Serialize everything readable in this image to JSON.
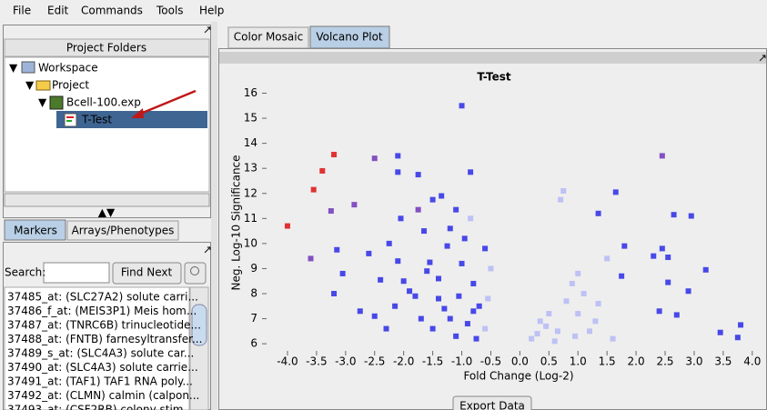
{
  "menu": [
    "File",
    "Edit",
    "Commands",
    "Tools",
    "Help"
  ],
  "left_panel": {
    "title": "Project Folders",
    "tree": [
      "Workspace",
      "Project",
      "Bcell-100.exp",
      "T-Test"
    ],
    "tabs": [
      "Markers",
      "Arrays/Phenotypes"
    ],
    "search_label": "Search:",
    "find_button": "Find Next",
    "markers": [
      "37485_at: (SLC27A2) solute carri...",
      "37486_f_at: (MEIS3P1) Meis hom...",
      "37487_at: (TNRC6B) trinucleotide...",
      "37488_at: (FNTB) farnesyltransfer...",
      "37489_s_at: (SLC4A3) solute car...",
      "37490_at: (SLC4A3) solute carrie...",
      "37491_at: (TAF1) TAF1 RNA poly...",
      "37492_at: (CLMN) calmin (calpon...",
      "37493_at: (CSF2RB) colony stim..."
    ]
  },
  "right_panel": {
    "tabs": [
      "Color Mosaic",
      "Volcano Plot"
    ],
    "export_button": "Export Data"
  },
  "chart_data": {
    "type": "scatter",
    "title": "T-Test",
    "x_label": "Fold Change (Log-2)",
    "y_label": "Neg. Log-10 Significance",
    "xlim": [
      -4.25,
      4.05
    ],
    "ylim": [
      5.75,
      16.2
    ],
    "xticks": [
      {
        "value": -4,
        "label": "-4.0"
      },
      {
        "value": -3.5,
        "label": "-3.5"
      },
      {
        "value": -3,
        "label": "-3.0"
      },
      {
        "value": -2.5,
        "label": "-2.5"
      },
      {
        "value": -2,
        "label": "-2.0"
      },
      {
        "value": -1.5,
        "label": "-1.5"
      },
      {
        "value": -1,
        "label": "-1.0"
      },
      {
        "value": -0.5,
        "label": "-0.5"
      },
      {
        "value": 0,
        "label": "0.0"
      },
      {
        "value": 0.5,
        "label": "0.5"
      },
      {
        "value": 1,
        "label": "1.0"
      },
      {
        "value": 1.5,
        "label": "1.5"
      },
      {
        "value": 2,
        "label": "2.0"
      },
      {
        "value": 2.5,
        "label": "2.5"
      },
      {
        "value": 3,
        "label": "3.0"
      },
      {
        "value": 3.5,
        "label": "3.5"
      },
      {
        "value": 4,
        "label": "4.0"
      }
    ],
    "yticks": [
      6,
      7,
      8,
      9,
      10,
      11,
      12,
      13,
      14,
      15,
      16
    ],
    "series": [
      {
        "color": "#b4b8f4",
        "x": [
          0.2,
          0.35,
          0.5,
          0.65,
          0.8,
          0.9,
          1.0,
          1.1,
          1.2,
          1.35,
          1.5,
          0.75,
          0.7,
          1.0,
          0.6,
          0.3,
          1.3,
          1.6,
          -0.55,
          -0.6,
          -0.5,
          -0.85,
          0.45,
          0.95
        ],
        "values": [
          6.2,
          6.9,
          7.2,
          6.5,
          7.7,
          8.4,
          7.2,
          8.0,
          6.5,
          7.6,
          9.4,
          12.1,
          11.75,
          8.8,
          6.1,
          6.4,
          6.9,
          6.2,
          7.8,
          6.6,
          9.0,
          11.0,
          6.7,
          6.3
        ]
      },
      {
        "color": "#2a2ae6",
        "x": [
          -2.1,
          -2.1,
          -1.75,
          -1.5,
          -1.35,
          -1.1,
          -0.85,
          -1.0,
          1.65,
          2.65,
          2.95,
          3.2,
          3.8,
          3.75,
          3.45,
          2.55,
          1.35,
          1.8,
          1.75,
          2.45,
          2.3,
          2.55,
          2.9,
          2.7,
          2.4,
          -3.15,
          -3.05,
          -3.2,
          -2.75,
          -2.6,
          -2.4,
          -2.5,
          -2.3,
          -2.25,
          -2.05,
          -2.1,
          -2.0,
          -1.8,
          -1.65,
          -1.55,
          -1.4,
          -1.3,
          -1.2,
          -1.0,
          -0.8,
          -0.7,
          -0.9,
          -1.1,
          -1.5,
          -1.7,
          -0.6,
          -1.25,
          -1.9,
          -2.15,
          -0.75,
          -0.95,
          -1.4,
          -1.6,
          -1.05,
          -1.2,
          -0.8
        ],
        "values": [
          13.5,
          12.85,
          12.75,
          11.75,
          11.9,
          11.35,
          12.85,
          15.5,
          12.05,
          11.15,
          11.1,
          8.95,
          6.75,
          6.25,
          6.45,
          9.45,
          11.2,
          9.9,
          8.7,
          9.8,
          9.5,
          8.45,
          8.1,
          7.15,
          7.3,
          9.75,
          8.8,
          8.0,
          7.3,
          9.6,
          8.55,
          7.1,
          6.6,
          10.0,
          11.0,
          9.3,
          8.5,
          7.9,
          10.5,
          9.25,
          8.6,
          7.4,
          10.6,
          9.2,
          8.4,
          7.5,
          6.8,
          6.3,
          6.6,
          7.0,
          9.8,
          9.9,
          8.1,
          7.5,
          6.2,
          10.2,
          7.8,
          8.9,
          7.9,
          7.0,
          7.3
        ]
      },
      {
        "color": "#7034b8",
        "x": [
          -3.6,
          -3.25,
          -2.85,
          -2.5,
          -1.75,
          2.45
        ],
        "values": [
          9.4,
          11.3,
          11.55,
          13.4,
          11.35,
          13.5
        ]
      },
      {
        "color": "#dd1111",
        "x": [
          -4.0,
          -3.55,
          -3.4,
          -3.2
        ],
        "values": [
          10.7,
          12.15,
          12.9,
          13.55
        ]
      }
    ]
  }
}
